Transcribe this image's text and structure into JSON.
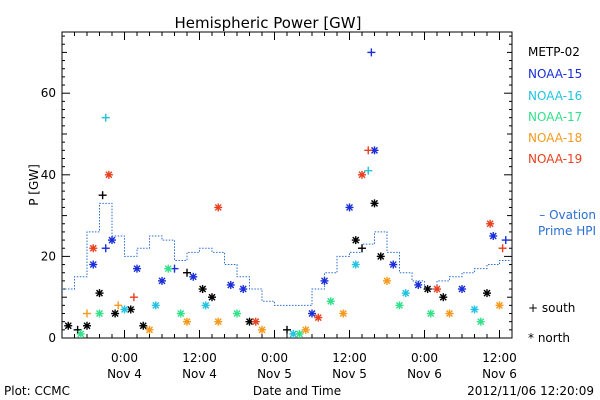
{
  "chart_data": {
    "type": "scatter",
    "title": "Hemispheric Power [GW]",
    "xlabel": "Date and Time",
    "ylabel": "P [GW]",
    "xlim": [
      "2012-11-03T14:00",
      "2012-11-06T14:00"
    ],
    "ylim": [
      0,
      75
    ],
    "x_ticks": [
      {
        "at": "2012-11-04T00:00",
        "time": "0:00",
        "day": "Nov 4"
      },
      {
        "at": "2012-11-04T12:00",
        "time": "12:00",
        "day": "Nov 4"
      },
      {
        "at": "2012-11-05T00:00",
        "time": "0:00",
        "day": "Nov 5"
      },
      {
        "at": "2012-11-05T12:00",
        "time": "12:00",
        "day": "Nov 5"
      },
      {
        "at": "2012-11-06T00:00",
        "time": "0:00",
        "day": "Nov 6"
      },
      {
        "at": "2012-11-06T12:00",
        "time": "12:00",
        "day": "Nov 6"
      }
    ],
    "y_ticks": [
      0,
      20,
      40,
      60
    ],
    "legend": {
      "placement": "right",
      "satellites": [
        {
          "name": "METP-02",
          "color": "#000000"
        },
        {
          "name": "NOAA-15",
          "color": "#1a2ed8"
        },
        {
          "name": "NOAA-16",
          "color": "#22c3e0"
        },
        {
          "name": "NOAA-17",
          "color": "#33e08a"
        },
        {
          "name": "NOAA-18",
          "color": "#f59a1c"
        },
        {
          "name": "NOAA-19",
          "color": "#e8401f"
        }
      ],
      "ovation_label": "– Ovation Prime HPI",
      "ovation_color": "#2a6fd0",
      "south_label": "+ south",
      "north_label": "* north"
    },
    "ovation_hpi": [
      {
        "t": "2012-11-03T14:00",
        "v": 12
      },
      {
        "t": "2012-11-03T16:00",
        "v": 15
      },
      {
        "t": "2012-11-03T18:00",
        "v": 26
      },
      {
        "t": "2012-11-03T20:00",
        "v": 33
      },
      {
        "t": "2012-11-03T22:00",
        "v": 25
      },
      {
        "t": "2012-11-04T00:00",
        "v": 20
      },
      {
        "t": "2012-11-04T02:00",
        "v": 22
      },
      {
        "t": "2012-11-04T04:00",
        "v": 25
      },
      {
        "t": "2012-11-04T06:00",
        "v": 24
      },
      {
        "t": "2012-11-04T08:00",
        "v": 19
      },
      {
        "t": "2012-11-04T10:00",
        "v": 21
      },
      {
        "t": "2012-11-04T12:00",
        "v": 22
      },
      {
        "t": "2012-11-04T14:00",
        "v": 21
      },
      {
        "t": "2012-11-04T16:00",
        "v": 18
      },
      {
        "t": "2012-11-04T18:00",
        "v": 15
      },
      {
        "t": "2012-11-04T20:00",
        "v": 12
      },
      {
        "t": "2012-11-04T22:00",
        "v": 9
      },
      {
        "t": "2012-11-05T00:00",
        "v": 8
      },
      {
        "t": "2012-11-05T02:00",
        "v": 8
      },
      {
        "t": "2012-11-05T04:00",
        "v": 8
      },
      {
        "t": "2012-11-05T06:00",
        "v": 12
      },
      {
        "t": "2012-11-05T08:00",
        "v": 16
      },
      {
        "t": "2012-11-05T10:00",
        "v": 20
      },
      {
        "t": "2012-11-05T12:00",
        "v": 21
      },
      {
        "t": "2012-11-05T14:00",
        "v": 23
      },
      {
        "t": "2012-11-05T16:00",
        "v": 26
      },
      {
        "t": "2012-11-05T18:00",
        "v": 21
      },
      {
        "t": "2012-11-05T20:00",
        "v": 16
      },
      {
        "t": "2012-11-05T22:00",
        "v": 14
      },
      {
        "t": "2012-11-06T00:00",
        "v": 12
      },
      {
        "t": "2012-11-06T02:00",
        "v": 14
      },
      {
        "t": "2012-11-06T04:00",
        "v": 15
      },
      {
        "t": "2012-11-06T06:00",
        "v": 16
      },
      {
        "t": "2012-11-06T08:00",
        "v": 17
      },
      {
        "t": "2012-11-06T10:00",
        "v": 18
      },
      {
        "t": "2012-11-06T12:00",
        "v": 19
      },
      {
        "t": "2012-11-06T14:00",
        "v": 19
      }
    ],
    "points": [
      {
        "t": "2012-11-03T15:00",
        "v": 3,
        "sat": "METP-02",
        "hemi": "north"
      },
      {
        "t": "2012-11-03T16:30",
        "v": 2,
        "sat": "METP-02",
        "hemi": "south"
      },
      {
        "t": "2012-11-03T18:00",
        "v": 3,
        "sat": "METP-02",
        "hemi": "north"
      },
      {
        "t": "2012-11-03T20:00",
        "v": 11,
        "sat": "METP-02",
        "hemi": "north"
      },
      {
        "t": "2012-11-03T20:30",
        "v": 35,
        "sat": "METP-02",
        "hemi": "south"
      },
      {
        "t": "2012-11-03T22:30",
        "v": 6,
        "sat": "METP-02",
        "hemi": "north"
      },
      {
        "t": "2012-11-04T01:00",
        "v": 7,
        "sat": "METP-02",
        "hemi": "north"
      },
      {
        "t": "2012-11-04T03:00",
        "v": 3,
        "sat": "METP-02",
        "hemi": "north"
      },
      {
        "t": "2012-11-04T10:00",
        "v": 16,
        "sat": "METP-02",
        "hemi": "south"
      },
      {
        "t": "2012-11-04T12:30",
        "v": 12,
        "sat": "METP-02",
        "hemi": "north"
      },
      {
        "t": "2012-11-04T14:00",
        "v": 10,
        "sat": "METP-02",
        "hemi": "north"
      },
      {
        "t": "2012-11-04T20:00",
        "v": 4,
        "sat": "METP-02",
        "hemi": "north"
      },
      {
        "t": "2012-11-05T02:00",
        "v": 2,
        "sat": "METP-02",
        "hemi": "south"
      },
      {
        "t": "2012-11-05T13:00",
        "v": 24,
        "sat": "METP-02",
        "hemi": "north"
      },
      {
        "t": "2012-11-05T14:00",
        "v": 22,
        "sat": "METP-02",
        "hemi": "south"
      },
      {
        "t": "2012-11-05T16:00",
        "v": 33,
        "sat": "METP-02",
        "hemi": "north"
      },
      {
        "t": "2012-11-05T17:00",
        "v": 20,
        "sat": "METP-02",
        "hemi": "north"
      },
      {
        "t": "2012-11-06T00:30",
        "v": 12,
        "sat": "METP-02",
        "hemi": "north"
      },
      {
        "t": "2012-11-06T03:00",
        "v": 10,
        "sat": "METP-02",
        "hemi": "north"
      },
      {
        "t": "2012-11-06T10:00",
        "v": 11,
        "sat": "METP-02",
        "hemi": "north"
      },
      {
        "t": "2012-11-03T19:00",
        "v": 18,
        "sat": "NOAA-15",
        "hemi": "north"
      },
      {
        "t": "2012-11-03T21:00",
        "v": 22,
        "sat": "NOAA-15",
        "hemi": "south"
      },
      {
        "t": "2012-11-03T22:00",
        "v": 24,
        "sat": "NOAA-15",
        "hemi": "north"
      },
      {
        "t": "2012-11-04T02:00",
        "v": 17,
        "sat": "NOAA-15",
        "hemi": "north"
      },
      {
        "t": "2012-11-04T06:00",
        "v": 14,
        "sat": "NOAA-15",
        "hemi": "north"
      },
      {
        "t": "2012-11-04T08:00",
        "v": 17,
        "sat": "NOAA-15",
        "hemi": "south"
      },
      {
        "t": "2012-11-04T11:00",
        "v": 15,
        "sat": "NOAA-15",
        "hemi": "north"
      },
      {
        "t": "2012-11-04T17:00",
        "v": 13,
        "sat": "NOAA-15",
        "hemi": "north"
      },
      {
        "t": "2012-11-04T19:00",
        "v": 12,
        "sat": "NOAA-15",
        "hemi": "north"
      },
      {
        "t": "2012-11-05T06:00",
        "v": 6,
        "sat": "NOAA-15",
        "hemi": "north"
      },
      {
        "t": "2012-11-05T08:00",
        "v": 14,
        "sat": "NOAA-15",
        "hemi": "north"
      },
      {
        "t": "2012-11-05T12:00",
        "v": 32,
        "sat": "NOAA-15",
        "hemi": "north"
      },
      {
        "t": "2012-11-05T15:30",
        "v": 70,
        "sat": "NOAA-15",
        "hemi": "south"
      },
      {
        "t": "2012-11-05T16:00",
        "v": 46,
        "sat": "NOAA-15",
        "hemi": "north"
      },
      {
        "t": "2012-11-05T19:00",
        "v": 18,
        "sat": "NOAA-15",
        "hemi": "north"
      },
      {
        "t": "2012-11-05T23:00",
        "v": 13,
        "sat": "NOAA-15",
        "hemi": "north"
      },
      {
        "t": "2012-11-06T06:00",
        "v": 12,
        "sat": "NOAA-15",
        "hemi": "north"
      },
      {
        "t": "2012-11-06T11:00",
        "v": 25,
        "sat": "NOAA-15",
        "hemi": "north"
      },
      {
        "t": "2012-11-06T13:00",
        "v": 24,
        "sat": "NOAA-15",
        "hemi": "south"
      },
      {
        "t": "2012-11-03T21:00",
        "v": 54,
        "sat": "NOAA-16",
        "hemi": "south"
      },
      {
        "t": "2012-11-04T00:00",
        "v": 7,
        "sat": "NOAA-16",
        "hemi": "north"
      },
      {
        "t": "2012-11-04T05:00",
        "v": 8,
        "sat": "NOAA-16",
        "hemi": "north"
      },
      {
        "t": "2012-11-04T13:00",
        "v": 8,
        "sat": "NOAA-16",
        "hemi": "north"
      },
      {
        "t": "2012-11-05T03:00",
        "v": 1,
        "sat": "NOAA-16",
        "hemi": "north"
      },
      {
        "t": "2012-11-05T13:00",
        "v": 18,
        "sat": "NOAA-16",
        "hemi": "north"
      },
      {
        "t": "2012-11-05T15:00",
        "v": 41,
        "sat": "NOAA-16",
        "hemi": "south"
      },
      {
        "t": "2012-11-05T21:00",
        "v": 11,
        "sat": "NOAA-16",
        "hemi": "north"
      },
      {
        "t": "2012-11-06T08:00",
        "v": 7,
        "sat": "NOAA-16",
        "hemi": "north"
      },
      {
        "t": "2012-11-03T17:00",
        "v": 1,
        "sat": "NOAA-17",
        "hemi": "north"
      },
      {
        "t": "2012-11-03T20:00",
        "v": 6,
        "sat": "NOAA-17",
        "hemi": "north"
      },
      {
        "t": "2012-11-04T07:00",
        "v": 17,
        "sat": "NOAA-17",
        "hemi": "north"
      },
      {
        "t": "2012-11-04T09:00",
        "v": 6,
        "sat": "NOAA-17",
        "hemi": "north"
      },
      {
        "t": "2012-11-04T18:00",
        "v": 6,
        "sat": "NOAA-17",
        "hemi": "north"
      },
      {
        "t": "2012-11-05T04:00",
        "v": 1,
        "sat": "NOAA-17",
        "hemi": "north"
      },
      {
        "t": "2012-11-05T09:00",
        "v": 9,
        "sat": "NOAA-17",
        "hemi": "north"
      },
      {
        "t": "2012-11-05T20:00",
        "v": 8,
        "sat": "NOAA-17",
        "hemi": "north"
      },
      {
        "t": "2012-11-06T01:00",
        "v": 6,
        "sat": "NOAA-17",
        "hemi": "north"
      },
      {
        "t": "2012-11-06T09:00",
        "v": 4,
        "sat": "NOAA-17",
        "hemi": "north"
      },
      {
        "t": "2012-11-03T18:00",
        "v": 6,
        "sat": "NOAA-18",
        "hemi": "south"
      },
      {
        "t": "2012-11-03T23:00",
        "v": 8,
        "sat": "NOAA-18",
        "hemi": "south"
      },
      {
        "t": "2012-11-04T04:00",
        "v": 2,
        "sat": "NOAA-18",
        "hemi": "north"
      },
      {
        "t": "2012-11-04T10:00",
        "v": 4,
        "sat": "NOAA-18",
        "hemi": "north"
      },
      {
        "t": "2012-11-04T15:00",
        "v": 4,
        "sat": "NOAA-18",
        "hemi": "north"
      },
      {
        "t": "2012-11-04T22:00",
        "v": 2,
        "sat": "NOAA-18",
        "hemi": "north"
      },
      {
        "t": "2012-11-05T05:00",
        "v": 2,
        "sat": "NOAA-18",
        "hemi": "north"
      },
      {
        "t": "2012-11-05T11:00",
        "v": 6,
        "sat": "NOAA-18",
        "hemi": "north"
      },
      {
        "t": "2012-11-05T18:00",
        "v": 14,
        "sat": "NOAA-18",
        "hemi": "north"
      },
      {
        "t": "2012-11-06T04:00",
        "v": 6,
        "sat": "NOAA-18",
        "hemi": "north"
      },
      {
        "t": "2012-11-06T12:00",
        "v": 8,
        "sat": "NOAA-18",
        "hemi": "north"
      },
      {
        "t": "2012-11-03T19:00",
        "v": 22,
        "sat": "NOAA-19",
        "hemi": "north"
      },
      {
        "t": "2012-11-03T21:30",
        "v": 40,
        "sat": "NOAA-19",
        "hemi": "north"
      },
      {
        "t": "2012-11-04T01:30",
        "v": 10,
        "sat": "NOAA-19",
        "hemi": "south"
      },
      {
        "t": "2012-11-04T15:00",
        "v": 32,
        "sat": "NOAA-19",
        "hemi": "north"
      },
      {
        "t": "2012-11-04T21:00",
        "v": 4,
        "sat": "NOAA-19",
        "hemi": "north"
      },
      {
        "t": "2012-11-05T07:00",
        "v": 5,
        "sat": "NOAA-19",
        "hemi": "north"
      },
      {
        "t": "2012-11-05T14:00",
        "v": 40,
        "sat": "NOAA-19",
        "hemi": "north"
      },
      {
        "t": "2012-11-05T15:00",
        "v": 46,
        "sat": "NOAA-19",
        "hemi": "south"
      },
      {
        "t": "2012-11-06T02:00",
        "v": 12,
        "sat": "NOAA-19",
        "hemi": "north"
      },
      {
        "t": "2012-11-06T10:30",
        "v": 28,
        "sat": "NOAA-19",
        "hemi": "north"
      },
      {
        "t": "2012-11-06T12:30",
        "v": 22,
        "sat": "NOAA-19",
        "hemi": "south"
      }
    ]
  },
  "footer": {
    "plot_label": "Plot: CCMC",
    "timestamp": "2012/11/06 12:20:09"
  }
}
